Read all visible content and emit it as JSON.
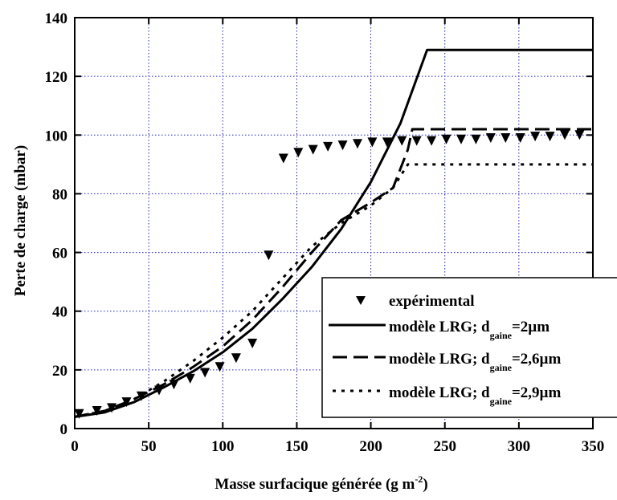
{
  "chart_data": {
    "type": "line",
    "title": "",
    "xlabel": "Masse surfacique générée (g m",
    "xlabel_sup": "-2",
    "xlabel_end": ")",
    "ylabel": "Perte de charge (mbar)",
    "xlim": [
      0,
      350
    ],
    "ylim": [
      0,
      140
    ],
    "xticks": [
      0,
      50,
      100,
      150,
      200,
      250,
      300,
      350
    ],
    "yticks": [
      0,
      20,
      40,
      60,
      80,
      100,
      120,
      140
    ],
    "grid": true,
    "grid_color": "#1f1fd6",
    "legend_position": "bottom-right",
    "series": [
      {
        "name": "expérimental",
        "style": "triangle-down-markers",
        "x": [
          3,
          15,
          25,
          35,
          45,
          57,
          67,
          78,
          88,
          98,
          109,
          120,
          131,
          141,
          151,
          161,
          171,
          181,
          191,
          201,
          211,
          221,
          231,
          241,
          251,
          261,
          271,
          281,
          291,
          301,
          311,
          321,
          331,
          341
        ],
        "y": [
          5,
          6,
          7,
          9,
          11,
          13,
          15,
          17,
          19,
          21,
          24,
          29,
          59,
          92,
          94,
          95,
          96,
          96.5,
          97,
          97.5,
          97.5,
          98,
          98,
          98,
          98.5,
          98.5,
          98.5,
          99,
          99,
          99,
          99.5,
          99.5,
          100,
          100
        ]
      },
      {
        "name": "modèle LRG; d",
        "sub": "gaine",
        "suffix": "=2µm",
        "style": "solid",
        "x": [
          0,
          20,
          40,
          60,
          80,
          100,
          120,
          140,
          160,
          180,
          200,
          220,
          238,
          350
        ],
        "y": [
          4,
          5.5,
          9,
          14,
          19.5,
          26,
          34,
          44,
          55,
          68,
          84,
          104,
          129,
          129
        ]
      },
      {
        "name": "modèle LRG; d",
        "sub": "gaine",
        "suffix": "=2,6µm",
        "style": "dashed",
        "x": [
          0,
          20,
          40,
          60,
          80,
          100,
          120,
          140,
          160,
          180,
          200,
          215,
          225,
          228,
          350
        ],
        "y": [
          4,
          6,
          10,
          15,
          21,
          28,
          37,
          48,
          60,
          71,
          77,
          82,
          95,
          102,
          102
        ]
      },
      {
        "name": "modèle LRG; d",
        "sub": "gaine",
        "suffix": "=2,9µm",
        "style": "dotted",
        "x": [
          0,
          20,
          40,
          60,
          80,
          100,
          120,
          140,
          160,
          180,
          200,
          215,
          225,
          350
        ],
        "y": [
          4,
          6,
          10,
          16,
          23,
          31,
          40,
          51,
          62,
          70,
          76,
          82,
          90,
          90
        ]
      }
    ]
  }
}
